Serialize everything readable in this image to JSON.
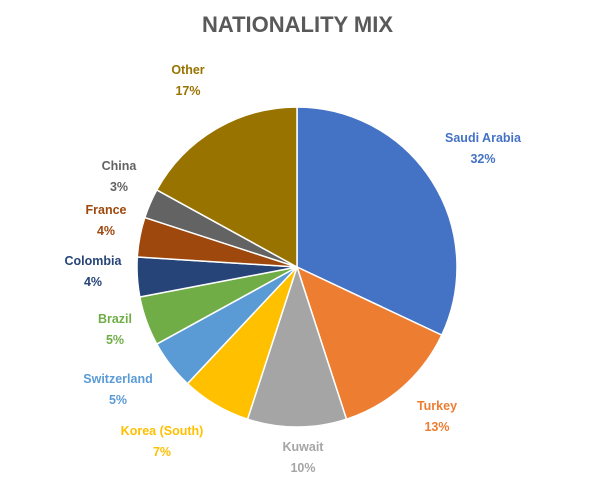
{
  "chart_data": {
    "type": "pie",
    "title": "NATIONALITY MIX",
    "slices": [
      {
        "label": "Saudi Arabia",
        "value": 32,
        "value_text": "32%",
        "color": "#4472C4"
      },
      {
        "label": "Turkey",
        "value": 13,
        "value_text": "13%",
        "color": "#ED7D31"
      },
      {
        "label": "Kuwait",
        "value": 10,
        "value_text": "10%",
        "color": "#A5A5A5"
      },
      {
        "label": "Korea (South)",
        "value": 7,
        "value_text": "7%",
        "color": "#FFC000"
      },
      {
        "label": "Switzerland",
        "value": 5,
        "value_text": "5%",
        "color": "#5B9BD5"
      },
      {
        "label": "Brazil",
        "value": 5,
        "value_text": "5%",
        "color": "#70AD47"
      },
      {
        "label": "Colombia",
        "value": 4,
        "value_text": "4%",
        "color": "#264478"
      },
      {
        "label": "France",
        "value": 4,
        "value_text": "4%",
        "color": "#9E480E"
      },
      {
        "label": "China",
        "value": 3,
        "value_text": "3%",
        "color": "#636363"
      },
      {
        "label": "Other",
        "value": 17,
        "value_text": "17%",
        "color": "#997300"
      }
    ],
    "start_angle": "12 o'clock",
    "direction": "clockwise",
    "legend": "none"
  }
}
